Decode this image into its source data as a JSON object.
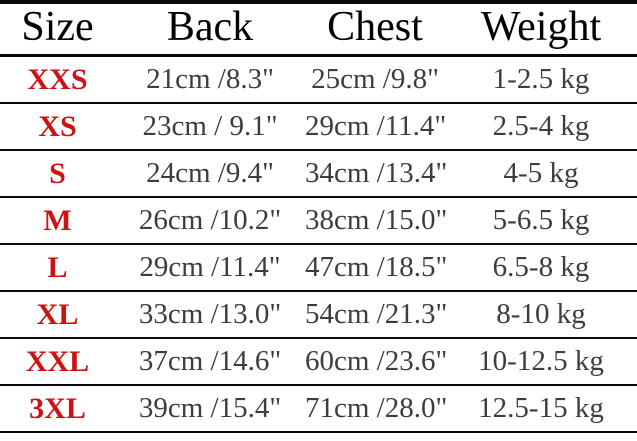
{
  "colors": {
    "size_label_red": "#cc1212",
    "header_text": "#000000",
    "data_text": "#3d3d3d",
    "rule_lines": "#0a0a0a",
    "background": "#ffffff"
  },
  "chart_data": {
    "type": "table",
    "title": "",
    "columns": [
      "Size",
      "Back",
      "Chest",
      "Weight"
    ],
    "rows": [
      {
        "size": "XXS",
        "back": "21cm /8.3\"",
        "chest": "25cm /9.8\"",
        "weight": "1-2.5 kg"
      },
      {
        "size": "XS",
        "back": "23cm / 9.1\"",
        "chest": "29cm /11.4\"",
        "weight": "2.5-4 kg"
      },
      {
        "size": "S",
        "back": "24cm /9.4\"",
        "chest": "34cm /13.4\"",
        "weight": "4-5 kg"
      },
      {
        "size": "M",
        "back": "26cm /10.2\"",
        "chest": "38cm /15.0\"",
        "weight": "5-6.5 kg"
      },
      {
        "size": "L",
        "back": "29cm /11.4\"",
        "chest": "47cm /18.5\"",
        "weight": "6.5-8 kg"
      },
      {
        "size": "XL",
        "back": "33cm /13.0\"",
        "chest": "54cm /21.3\"",
        "weight": "8-10 kg"
      },
      {
        "size": "XXL",
        "back": "37cm /14.6\"",
        "chest": "60cm /23.6\"",
        "weight": "10-12.5 kg"
      },
      {
        "size": "3XL",
        "back": "39cm /15.4\"",
        "chest": "71cm /28.0\"",
        "weight": "12.5-15 kg"
      }
    ],
    "layout": {
      "grid": "horizontal rules only, no vertical borders",
      "header_row": true,
      "size_column_color": "red"
    }
  }
}
